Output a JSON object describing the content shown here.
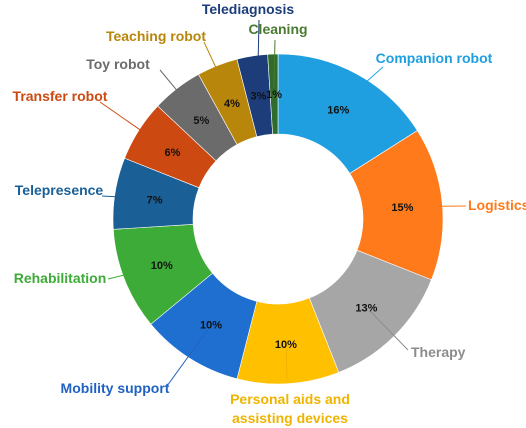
{
  "chart_data": {
    "type": "pie",
    "variant": "donut",
    "title": "",
    "value_unit": "%",
    "slices": [
      {
        "label": "Companion robot",
        "value": 16,
        "display": "16%",
        "color": "#1f9fe0",
        "label_color": "#1e9fe0"
      },
      {
        "label": "Logistics",
        "value": 15,
        "display": "15%",
        "color": "#ff7a1a",
        "label_color": "#ff7a1a"
      },
      {
        "label": "Therapy",
        "value": 13,
        "display": "13%",
        "color": "#a6a6a6",
        "label_color": "#8c8c8c"
      },
      {
        "label": "Personal aids and assisting devices",
        "label_lines": [
          "Personal aids and",
          "assisting devices"
        ],
        "value": 10,
        "display": "10%",
        "color": "#ffc000",
        "label_color": "#f0b400"
      },
      {
        "label": "Mobility support",
        "value": 10,
        "display": "10%",
        "color": "#1f6fd0",
        "label_color": "#1f62c4"
      },
      {
        "label": "Rehabilitation",
        "value": 10,
        "display": "10%",
        "color": "#3dab37",
        "label_color": "#3dab37"
      },
      {
        "label": "Telepresence",
        "value": 7,
        "display": "7%",
        "color": "#1a5f96",
        "label_color": "#1a5f96"
      },
      {
        "label": "Transfer robot",
        "value": 6,
        "display": "6%",
        "color": "#cc4a12",
        "label_color": "#cc4a12"
      },
      {
        "label": "Toy robot",
        "value": 5,
        "display": "5%",
        "color": "#6b6b6b",
        "label_color": "#6b6b6b"
      },
      {
        "label": "Teaching robot",
        "value": 4,
        "display": "4%",
        "color": "#b8860b",
        "label_color": "#b8860b"
      },
      {
        "label": "Telediagnosis",
        "value": 3,
        "display": "3%",
        "color": "#1c3d7a",
        "label_color": "#1c3d7a"
      },
      {
        "label": "Cleaning",
        "value": 1,
        "display": "1%",
        "color": "#2f6b2a",
        "label_color": "#4a7a30"
      }
    ]
  }
}
